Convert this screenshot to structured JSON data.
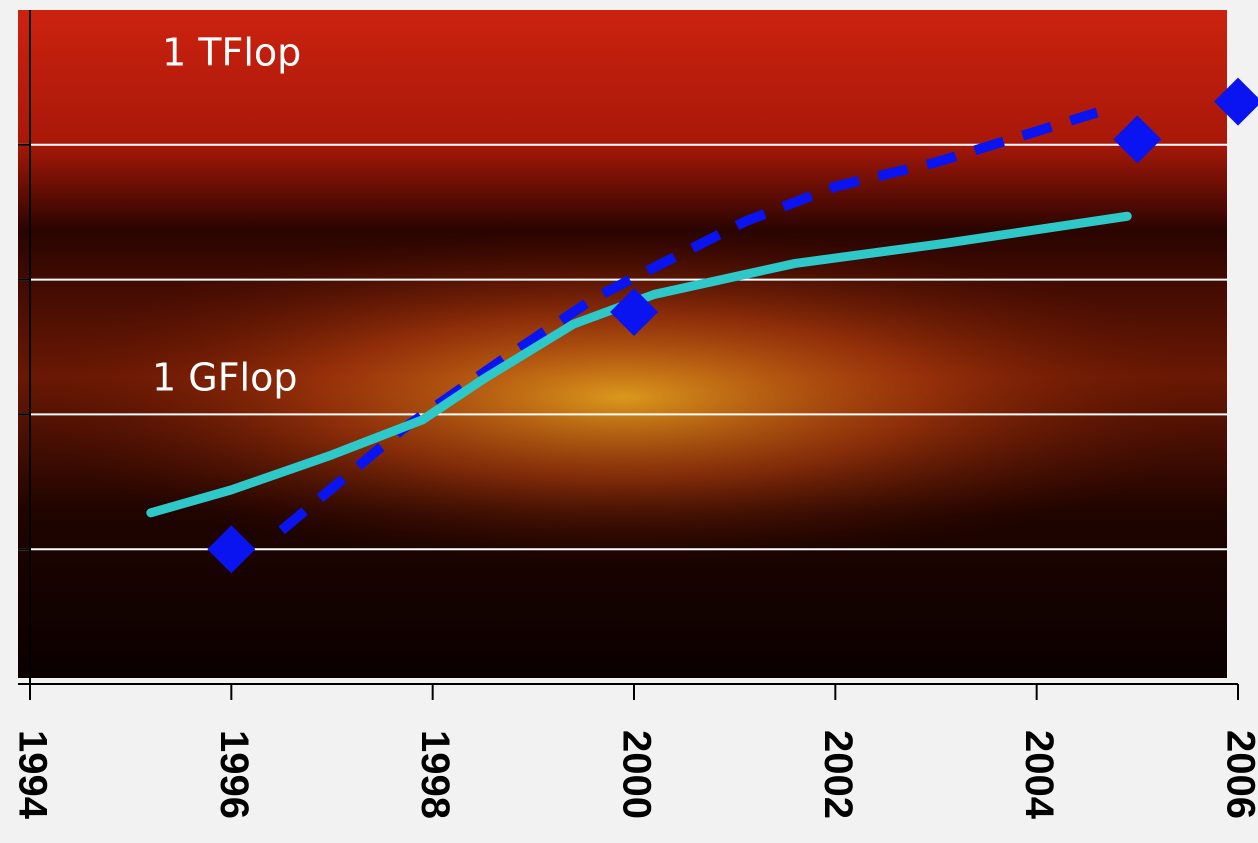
{
  "chart_data": {
    "type": "line",
    "annotations": [
      "1 TFlop",
      "1 GFlop"
    ],
    "xlim": [
      1994,
      2006
    ],
    "xticks": [
      1994,
      1996,
      1998,
      2000,
      2002,
      2004,
      2006
    ],
    "ylim": [
      0,
      5
    ],
    "yticks": [
      0,
      1,
      2,
      3,
      4
    ],
    "grid": true,
    "series": [
      {
        "color": "#0a14f0",
        "style": "dashed",
        "x": [
          1996.5,
          1997.7,
          1998.7,
          1999.6,
          2000.2,
          2001.1,
          2002.0,
          2003.0,
          2004.0,
          2004.6
        ],
        "values": [
          1.14,
          1.89,
          2.41,
          2.86,
          3.09,
          3.43,
          3.69,
          3.87,
          4.1,
          4.24
        ]
      },
      {
        "color": "#2ec8c8",
        "style": "solid",
        "x": [
          1995.2,
          1996.0,
          1997.0,
          1997.9,
          1998.5,
          1999.4,
          2000.2,
          2001.6,
          2003.1,
          2004.9
        ],
        "values": [
          1.27,
          1.44,
          1.7,
          1.96,
          2.26,
          2.67,
          2.89,
          3.12,
          3.27,
          3.47
        ]
      },
      {
        "color": "#0a14f0",
        "style": "markers",
        "x": [
          1996,
          2000,
          2005,
          2006
        ],
        "values": [
          1.0,
          2.76,
          4.04,
          4.32
        ]
      }
    ]
  }
}
